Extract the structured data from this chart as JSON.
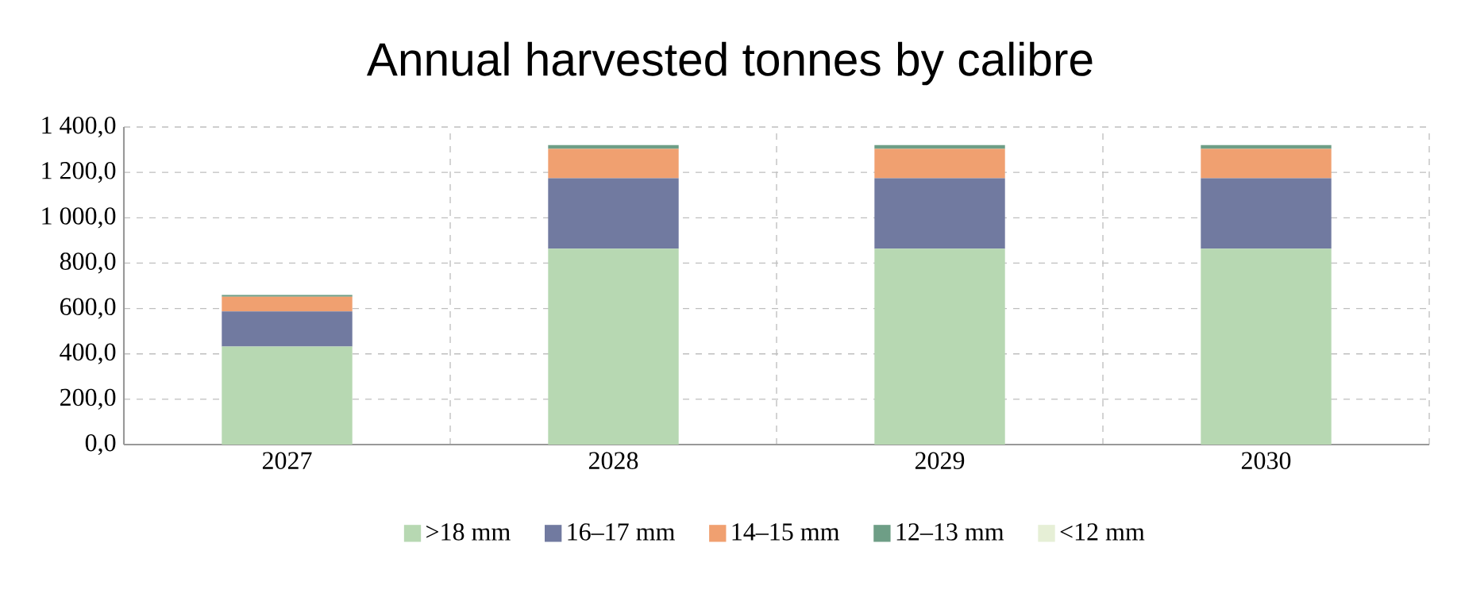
{
  "chart_data": {
    "type": "bar",
    "title": "Annual harvested tonnes by calibre",
    "stacked": true,
    "categories": [
      "2027",
      "2028",
      "2029",
      "2030"
    ],
    "series": [
      {
        "name": ">18 mm",
        "color": "#b7d8b2",
        "values": [
          432,
          864,
          864,
          864
        ]
      },
      {
        "name": "16–17 mm",
        "color": "#717aa0",
        "values": [
          155,
          310,
          310,
          310
        ]
      },
      {
        "name": "14–15 mm",
        "color": "#f0a070",
        "values": [
          65,
          130,
          130,
          130
        ]
      },
      {
        "name": "12–13 mm",
        "color": "#6e9e86",
        "values": [
          8,
          16,
          16,
          16
        ]
      },
      {
        "name": "<12 mm",
        "color": "#e6efd6",
        "values": [
          null,
          null,
          null,
          null
        ]
      }
    ],
    "ylim": [
      0,
      1400
    ],
    "yticks": [
      {
        "value": 0,
        "label": "0,0"
      },
      {
        "value": 200,
        "label": "200,0"
      },
      {
        "value": 400,
        "label": "400,0"
      },
      {
        "value": 600,
        "label": "600,0"
      },
      {
        "value": 800,
        "label": "800,0"
      },
      {
        "value": 1000,
        "label": "1 000,0"
      },
      {
        "value": 1200,
        "label": "1 200,0"
      },
      {
        "value": 1400,
        "label": "1 400,0"
      }
    ],
    "grid": true,
    "legend": "bottom"
  }
}
